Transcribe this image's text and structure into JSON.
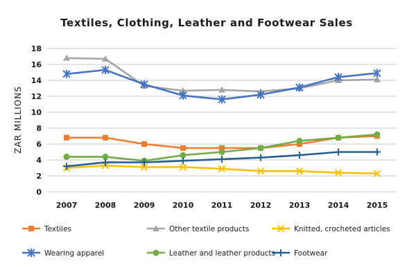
{
  "chart_data": {
    "type": "line",
    "title": "Textiles, Clothing, Leather and Footwear Sales",
    "ylabel": "ZAR MILLIONS",
    "xlabel": "",
    "ylim": [
      0,
      18
    ],
    "yticks": [
      0,
      2,
      4,
      6,
      8,
      10,
      12,
      14,
      16,
      18
    ],
    "grid": true,
    "legend_position": "bottom",
    "categories": [
      "2007",
      "2008",
      "2009",
      "2010",
      "2011",
      "2012",
      "2013",
      "2014",
      "2015"
    ],
    "series": [
      {
        "name": "Textiles",
        "color": "#ED7D31",
        "marker": "square",
        "values": [
          6.8,
          6.8,
          6.0,
          5.5,
          5.5,
          5.5,
          6.0,
          6.8,
          7.0
        ]
      },
      {
        "name": "Other textile products",
        "color": "#A5A5A5",
        "marker": "triangle",
        "values": [
          16.8,
          16.7,
          13.3,
          12.7,
          12.8,
          12.6,
          13.0,
          14.0,
          14.1
        ]
      },
      {
        "name": "Knitted, crocheted articles",
        "color": "#FFC000",
        "marker": "x",
        "values": [
          3.0,
          3.3,
          3.1,
          3.1,
          2.9,
          2.6,
          2.6,
          2.4,
          2.3
        ]
      },
      {
        "name": "Wearing apparel",
        "color": "#4472C4",
        "marker": "star",
        "values": [
          14.8,
          15.3,
          13.5,
          12.1,
          11.6,
          12.2,
          13.1,
          14.4,
          14.9
        ]
      },
      {
        "name": "Leather and leather products",
        "color": "#70AD47",
        "marker": "circle",
        "values": [
          4.4,
          4.4,
          3.9,
          4.6,
          5.0,
          5.5,
          6.4,
          6.8,
          7.2
        ]
      },
      {
        "name": "Footwear",
        "color": "#255E91",
        "marker": "plus",
        "values": [
          3.2,
          3.7,
          3.7,
          3.9,
          4.1,
          4.3,
          4.6,
          5.0,
          5.0
        ]
      }
    ]
  }
}
